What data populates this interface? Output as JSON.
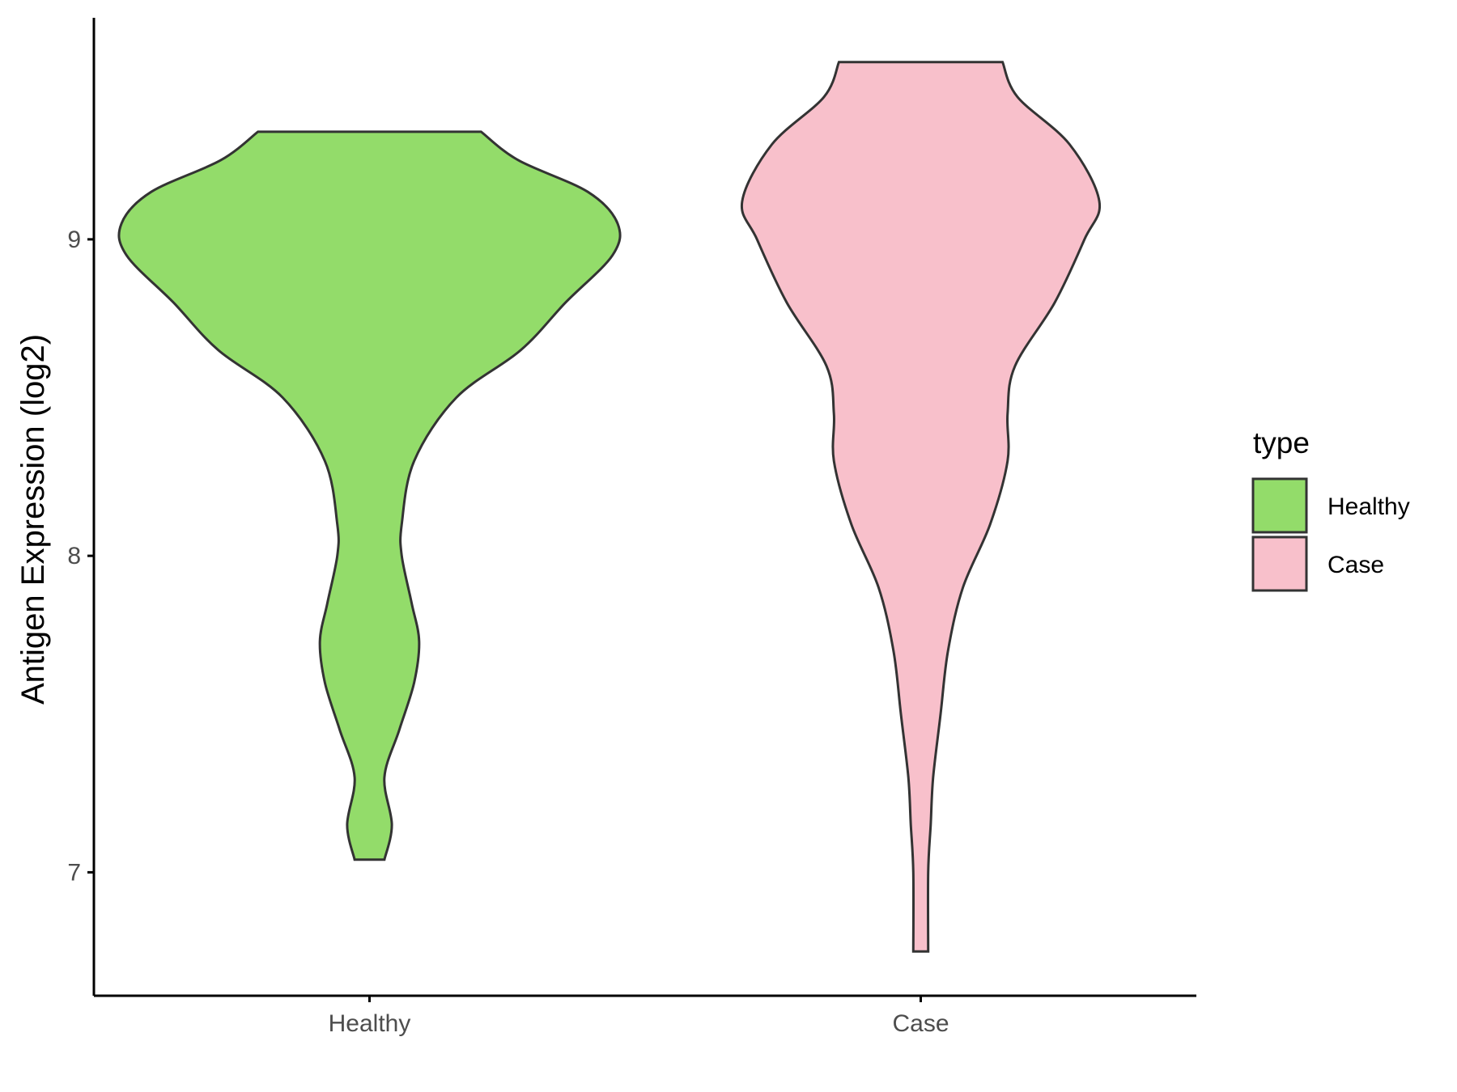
{
  "chart_data": {
    "type": "violin",
    "title": "",
    "xlabel": "",
    "ylabel": "Antigen Expression (log2)",
    "ylim": [
      6.61,
      9.7
    ],
    "yticks": [
      7,
      8,
      9
    ],
    "categories": [
      "Healthy",
      "Case"
    ],
    "legend": {
      "title": "type",
      "position": "right"
    },
    "grid": false,
    "series": [
      {
        "name": "Healthy",
        "color": "#93dc6a",
        "min": 7.04,
        "max": 9.34,
        "density_profile": [
          [
            7.04,
            0.03
          ],
          [
            7.15,
            0.045
          ],
          [
            7.3,
            0.03
          ],
          [
            7.45,
            0.06
          ],
          [
            7.6,
            0.09
          ],
          [
            7.73,
            0.1
          ],
          [
            7.85,
            0.085
          ],
          [
            8.0,
            0.065
          ],
          [
            8.1,
            0.065
          ],
          [
            8.3,
            0.09
          ],
          [
            8.5,
            0.175
          ],
          [
            8.65,
            0.305
          ],
          [
            8.8,
            0.395
          ],
          [
            8.95,
            0.49
          ],
          [
            9.05,
            0.5
          ],
          [
            9.15,
            0.44
          ],
          [
            9.25,
            0.3
          ],
          [
            9.34,
            0.225
          ]
        ]
      },
      {
        "name": "Case",
        "color": "#f8c0cb",
        "min": 6.75,
        "max": 9.56,
        "density_profile": [
          [
            6.75,
            0.015
          ],
          [
            7.0,
            0.015
          ],
          [
            7.15,
            0.02
          ],
          [
            7.3,
            0.025
          ],
          [
            7.5,
            0.04
          ],
          [
            7.7,
            0.055
          ],
          [
            7.9,
            0.085
          ],
          [
            8.1,
            0.14
          ],
          [
            8.3,
            0.175
          ],
          [
            8.45,
            0.175
          ],
          [
            8.6,
            0.19
          ],
          [
            8.8,
            0.27
          ],
          [
            9.0,
            0.33
          ],
          [
            9.12,
            0.36
          ],
          [
            9.3,
            0.3
          ],
          [
            9.45,
            0.195
          ],
          [
            9.56,
            0.165
          ]
        ]
      }
    ]
  }
}
